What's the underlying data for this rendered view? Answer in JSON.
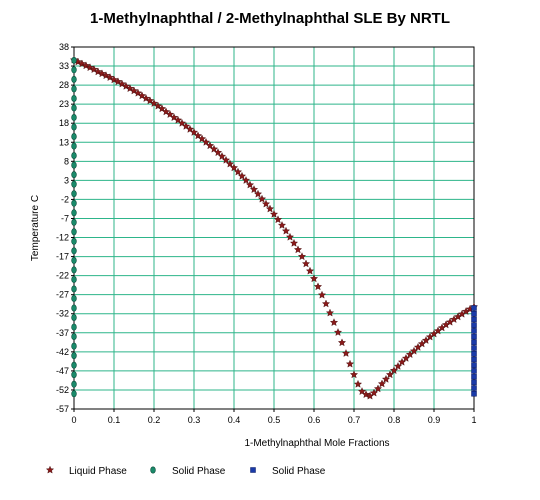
{
  "chart_data": {
    "type": "scatter",
    "title": "1-Methylnaphthal / 2-Methylnaphthal SLE By NRTL",
    "xlabel": "1-Methylnaphthal Mole Fractions",
    "ylabel": "Temperature C",
    "xlim": [
      0,
      1
    ],
    "ylim": [
      -57,
      38
    ],
    "x_ticks": [
      "0",
      "0.1",
      "0.2",
      "0.3",
      "0.4",
      "0.5",
      "0.6",
      "0.7",
      "0.8",
      "0.9",
      "1"
    ],
    "y_ticks": [
      "38",
      "33",
      "28",
      "23",
      "18",
      "13",
      "8",
      "3",
      "-2",
      "-7",
      "-12",
      "-17",
      "-22",
      "-27",
      "-32",
      "-37",
      "-42",
      "-47",
      "-52",
      "-57"
    ],
    "grid": true,
    "legend_position": "bottom",
    "series": [
      {
        "name": "Liquid Phase",
        "color": "#8b1a1a",
        "marker": "star",
        "points": [
          [
            0.0,
            34.6
          ],
          [
            0.01,
            34.1
          ],
          [
            0.02,
            33.6
          ],
          [
            0.03,
            33.1
          ],
          [
            0.04,
            32.6
          ],
          [
            0.05,
            32.1
          ],
          [
            0.06,
            31.5
          ],
          [
            0.07,
            31.0
          ],
          [
            0.08,
            30.5
          ],
          [
            0.09,
            30.0
          ],
          [
            0.1,
            29.4
          ],
          [
            0.11,
            28.9
          ],
          [
            0.12,
            28.3
          ],
          [
            0.13,
            27.7
          ],
          [
            0.14,
            27.1
          ],
          [
            0.15,
            26.5
          ],
          [
            0.16,
            25.9
          ],
          [
            0.17,
            25.2
          ],
          [
            0.18,
            24.5
          ],
          [
            0.19,
            23.9
          ],
          [
            0.2,
            23.2
          ],
          [
            0.21,
            22.5
          ],
          [
            0.22,
            21.8
          ],
          [
            0.23,
            21.0
          ],
          [
            0.24,
            20.3
          ],
          [
            0.25,
            19.5
          ],
          [
            0.26,
            18.8
          ],
          [
            0.27,
            18.0
          ],
          [
            0.28,
            17.2
          ],
          [
            0.29,
            16.4
          ],
          [
            0.3,
            15.6
          ],
          [
            0.31,
            14.7
          ],
          [
            0.32,
            13.9
          ],
          [
            0.33,
            13.0
          ],
          [
            0.34,
            12.1
          ],
          [
            0.35,
            11.2
          ],
          [
            0.36,
            10.3
          ],
          [
            0.37,
            9.3
          ],
          [
            0.38,
            8.3
          ],
          [
            0.39,
            7.3
          ],
          [
            0.4,
            6.3
          ],
          [
            0.41,
            5.2
          ],
          [
            0.42,
            4.1
          ],
          [
            0.43,
            3.0
          ],
          [
            0.44,
            1.8
          ],
          [
            0.45,
            0.6
          ],
          [
            0.46,
            -0.6
          ],
          [
            0.47,
            -1.9
          ],
          [
            0.48,
            -3.2
          ],
          [
            0.49,
            -4.5
          ],
          [
            0.5,
            -5.9
          ],
          [
            0.51,
            -7.3
          ],
          [
            0.52,
            -8.8
          ],
          [
            0.53,
            -10.3
          ],
          [
            0.54,
            -11.9
          ],
          [
            0.55,
            -13.5
          ],
          [
            0.56,
            -15.2
          ],
          [
            0.57,
            -17.0
          ],
          [
            0.58,
            -18.9
          ],
          [
            0.59,
            -20.8
          ],
          [
            0.6,
            -22.8
          ],
          [
            0.61,
            -24.9
          ],
          [
            0.62,
            -27.1
          ],
          [
            0.63,
            -29.4
          ],
          [
            0.64,
            -31.8
          ],
          [
            0.65,
            -34.3
          ],
          [
            0.66,
            -36.9
          ],
          [
            0.67,
            -39.6
          ],
          [
            0.68,
            -42.4
          ],
          [
            0.69,
            -45.2
          ],
          [
            0.7,
            -48.0
          ],
          [
            0.71,
            -50.5
          ],
          [
            0.72,
            -52.4
          ],
          [
            0.73,
            -53.2
          ],
          [
            0.74,
            -53.6
          ],
          [
            0.75,
            -52.8
          ],
          [
            0.76,
            -51.7
          ],
          [
            0.77,
            -50.4
          ],
          [
            0.78,
            -49.2
          ],
          [
            0.79,
            -48.0
          ],
          [
            0.8,
            -46.9
          ],
          [
            0.81,
            -45.8
          ],
          [
            0.82,
            -44.7
          ],
          [
            0.83,
            -43.7
          ],
          [
            0.84,
            -42.7
          ],
          [
            0.85,
            -41.8
          ],
          [
            0.86,
            -40.8
          ],
          [
            0.87,
            -39.9
          ],
          [
            0.88,
            -39.0
          ],
          [
            0.89,
            -38.1
          ],
          [
            0.9,
            -37.3
          ],
          [
            0.91,
            -36.5
          ],
          [
            0.92,
            -35.7
          ],
          [
            0.93,
            -34.9
          ],
          [
            0.94,
            -34.2
          ],
          [
            0.95,
            -33.5
          ],
          [
            0.96,
            -32.8
          ],
          [
            0.97,
            -32.1
          ],
          [
            0.98,
            -31.4
          ],
          [
            0.99,
            -30.8
          ],
          [
            1.0,
            -30.2
          ]
        ]
      },
      {
        "name": "Solid Phase",
        "color": "#1a8a6a",
        "marker": "circle",
        "points": [
          [
            0,
            34.5
          ],
          [
            0,
            32
          ],
          [
            0,
            29.5
          ],
          [
            0,
            27
          ],
          [
            0,
            24.5
          ],
          [
            0,
            22
          ],
          [
            0,
            19.5
          ],
          [
            0,
            17
          ],
          [
            0,
            14.5
          ],
          [
            0,
            12
          ],
          [
            0,
            9.5
          ],
          [
            0,
            7
          ],
          [
            0,
            4.5
          ],
          [
            0,
            2
          ],
          [
            0,
            -0.5
          ],
          [
            0,
            -3
          ],
          [
            0,
            -5.5
          ],
          [
            0,
            -8
          ],
          [
            0,
            -10.5
          ],
          [
            0,
            -13
          ],
          [
            0,
            -15.5
          ],
          [
            0,
            -18
          ],
          [
            0,
            -20.5
          ],
          [
            0,
            -23
          ],
          [
            0,
            -25.5
          ],
          [
            0,
            -28
          ],
          [
            0,
            -30.5
          ],
          [
            0,
            -33
          ],
          [
            0,
            -35.5
          ],
          [
            0,
            -38
          ],
          [
            0,
            -40.5
          ],
          [
            0,
            -43
          ],
          [
            0,
            -45.5
          ],
          [
            0,
            -48
          ],
          [
            0,
            -50.5
          ],
          [
            0,
            -53
          ]
        ]
      },
      {
        "name": "Solid Phase",
        "color": "#1a3aa8",
        "marker": "square",
        "points": [
          [
            1,
            -30.5
          ],
          [
            1,
            -32
          ],
          [
            1,
            -33.5
          ],
          [
            1,
            -35
          ],
          [
            1,
            -36.5
          ],
          [
            1,
            -38
          ],
          [
            1,
            -39.5
          ],
          [
            1,
            -41
          ],
          [
            1,
            -42.5
          ],
          [
            1,
            -44
          ],
          [
            1,
            -45.5
          ],
          [
            1,
            -47
          ],
          [
            1,
            -48.5
          ],
          [
            1,
            -50
          ],
          [
            1,
            -51.5
          ],
          [
            1,
            -53
          ]
        ]
      }
    ]
  }
}
